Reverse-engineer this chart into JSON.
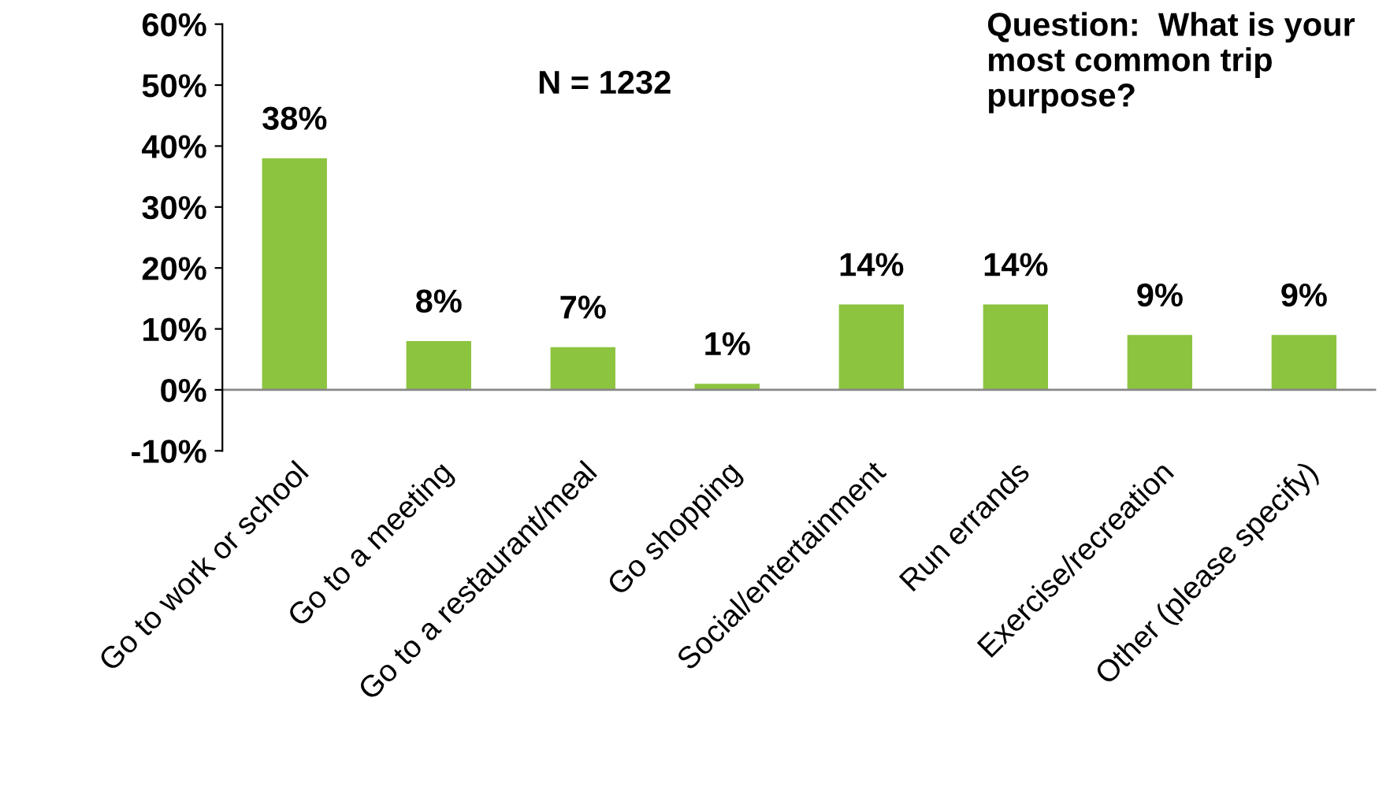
{
  "chart_data": {
    "type": "bar",
    "categories": [
      "Go to work or school",
      "Go to a meeting",
      "Go to a restaurant/meal",
      "Go shopping",
      "Social/entertainment",
      "Run errands",
      "Exercise/recreation",
      "Other (please specify)"
    ],
    "values": [
      38,
      8,
      7,
      1,
      14,
      14,
      9,
      9
    ],
    "value_labels": [
      "38%",
      "8%",
      "7%",
      "1%",
      "14%",
      "14%",
      "9%",
      "9%"
    ],
    "color": "#8cc43f",
    "ylim": [
      -10,
      60
    ],
    "yticks": [
      {
        "value": -10,
        "label": "-10%"
      },
      {
        "value": 0,
        "label": "0%"
      },
      {
        "value": 10,
        "label": "10%"
      },
      {
        "value": 20,
        "label": "20%"
      },
      {
        "value": 30,
        "label": "30%"
      },
      {
        "value": 40,
        "label": "40%"
      },
      {
        "value": 50,
        "label": "50%"
      },
      {
        "value": 60,
        "label": "60%"
      }
    ],
    "grid": false,
    "annotations": [
      "N = 1232",
      "Question:  What is your most common trip purpose?"
    ]
  }
}
